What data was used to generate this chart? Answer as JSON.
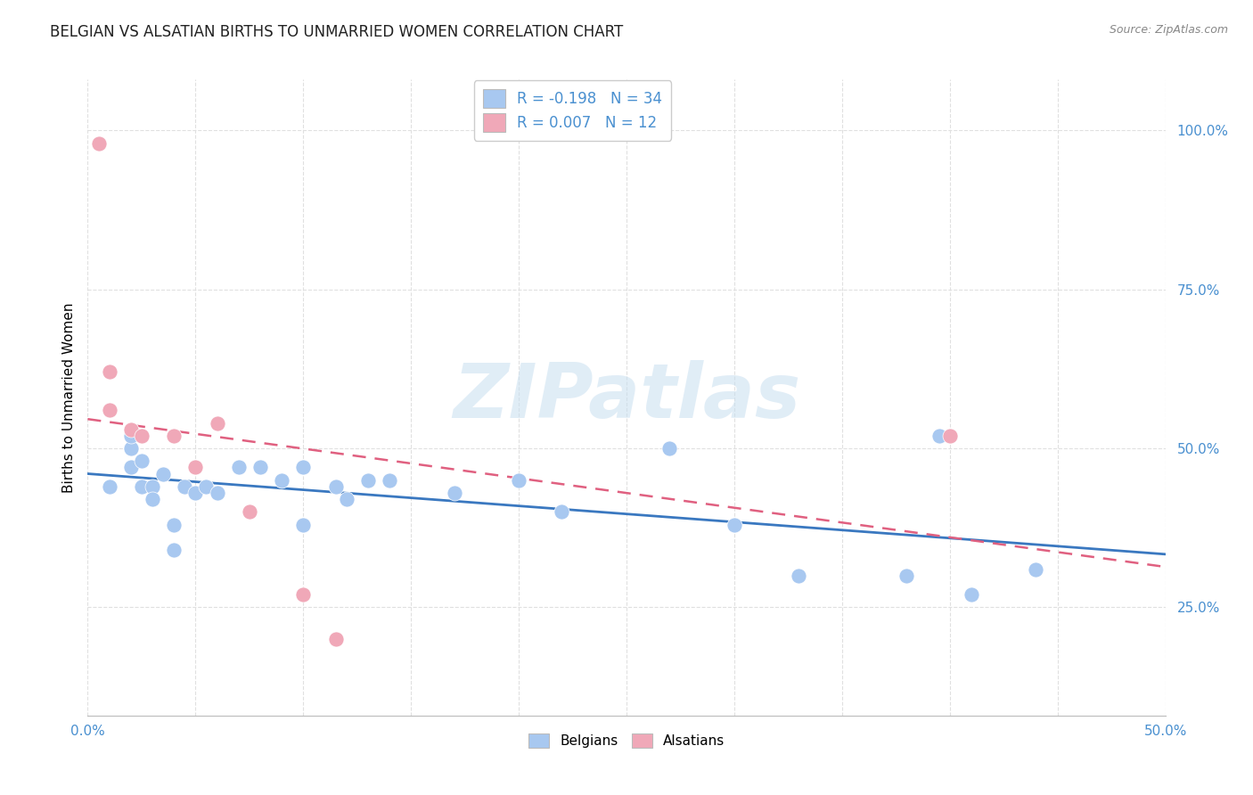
{
  "title": "BELGIAN VS ALSATIAN BIRTHS TO UNMARRIED WOMEN CORRELATION CHART",
  "source": "Source: ZipAtlas.com",
  "ylabel": "Births to Unmarried Women",
  "ytick_labels": [
    "25.0%",
    "50.0%",
    "75.0%",
    "100.0%"
  ],
  "ytick_values": [
    0.25,
    0.5,
    0.75,
    1.0
  ],
  "xlim": [
    0.0,
    0.5
  ],
  "ylim": [
    0.08,
    1.08
  ],
  "background_color": "#ffffff",
  "grid_color": "#e0e0e0",
  "watermark_text": "ZIPatlas",
  "legend_R1": "R = -0.198",
  "legend_N1": "N = 34",
  "legend_R2": "R = 0.007",
  "legend_N2": "N = 12",
  "belgian_color": "#a8c8f0",
  "alsatian_color": "#f0a8b8",
  "trendline_belgian_color": "#3a78c0",
  "trendline_alsatian_color": "#e06080",
  "belgians_x": [
    0.01,
    0.02,
    0.02,
    0.02,
    0.025,
    0.025,
    0.03,
    0.03,
    0.035,
    0.04,
    0.04,
    0.045,
    0.05,
    0.055,
    0.06,
    0.07,
    0.08,
    0.09,
    0.1,
    0.1,
    0.115,
    0.12,
    0.13,
    0.14,
    0.17,
    0.2,
    0.22,
    0.27,
    0.3,
    0.33,
    0.38,
    0.395,
    0.41,
    0.44
  ],
  "belgians_y": [
    0.44,
    0.5,
    0.52,
    0.47,
    0.48,
    0.44,
    0.44,
    0.42,
    0.46,
    0.34,
    0.38,
    0.44,
    0.43,
    0.44,
    0.43,
    0.47,
    0.47,
    0.45,
    0.47,
    0.38,
    0.44,
    0.42,
    0.45,
    0.45,
    0.43,
    0.45,
    0.4,
    0.5,
    0.38,
    0.3,
    0.3,
    0.52,
    0.27,
    0.31
  ],
  "alsatians_x": [
    0.005,
    0.01,
    0.01,
    0.02,
    0.025,
    0.04,
    0.05,
    0.06,
    0.075,
    0.1,
    0.115,
    0.4
  ],
  "alsatians_y": [
    0.98,
    0.62,
    0.56,
    0.53,
    0.52,
    0.52,
    0.47,
    0.54,
    0.4,
    0.27,
    0.2,
    0.52
  ]
}
